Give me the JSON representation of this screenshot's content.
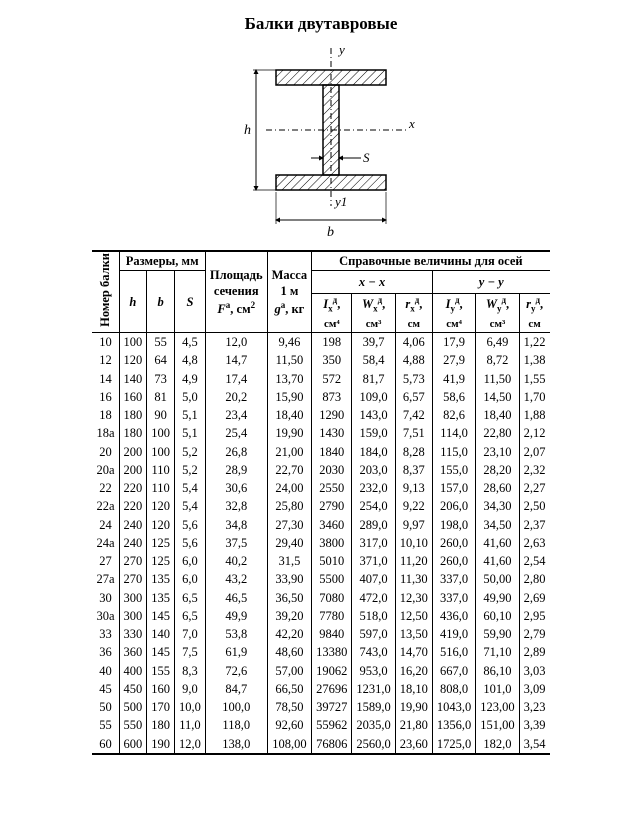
{
  "title": "Балки двутавровые",
  "diagram": {
    "labels": {
      "h": "h",
      "b": "b",
      "s": "S",
      "x": "x",
      "y": "y",
      "y1": "y1"
    },
    "hatch_color": "#000000",
    "bg": "#ffffff",
    "line_color": "#000000"
  },
  "table": {
    "header": {
      "nomer": "Номер балки",
      "razm": "Размеры, мм",
      "h": "h",
      "b": "b",
      "s": "S",
      "area_l1": "Площадь",
      "area_l2": "сечения",
      "area_sym": "Fᵃ, см²",
      "mass_l1": "Масса",
      "mass_l2": "1 м",
      "mass_sym": "gᵃ, кг",
      "ref": "Справочные величины для осей",
      "xx": "x − x",
      "yy": "y − y",
      "Ix": "Iₓᴬ,",
      "Ix_u": "см⁴",
      "Wx": "Wₓᴬ,",
      "Wx_u": "см³",
      "rx": "rₓᴬ,",
      "rx_u": "см",
      "Iy": "Iᵧᴬ,",
      "Iy_u": "см⁴",
      "Wy": "Wᵧᴬ,",
      "Wy_u": "см³",
      "ry": "rᵧᴬ,",
      "ry_u": "см"
    },
    "rows": [
      [
        "10",
        "100",
        "55",
        "4,5",
        "12,0",
        "9,46",
        "198",
        "39,7",
        "4,06",
        "17,9",
        "6,49",
        "1,22"
      ],
      [
        "12",
        "120",
        "64",
        "4,8",
        "14,7",
        "11,50",
        "350",
        "58,4",
        "4,88",
        "27,9",
        "8,72",
        "1,38"
      ],
      [
        "14",
        "140",
        "73",
        "4,9",
        "17,4",
        "13,70",
        "572",
        "81,7",
        "5,73",
        "41,9",
        "11,50",
        "1,55"
      ],
      [
        "16",
        "160",
        "81",
        "5,0",
        "20,2",
        "15,90",
        "873",
        "109,0",
        "6,57",
        "58,6",
        "14,50",
        "1,70"
      ],
      [
        "18",
        "180",
        "90",
        "5,1",
        "23,4",
        "18,40",
        "1290",
        "143,0",
        "7,42",
        "82,6",
        "18,40",
        "1,88"
      ],
      [
        "18a",
        "180",
        "100",
        "5,1",
        "25,4",
        "19,90",
        "1430",
        "159,0",
        "7,51",
        "114,0",
        "22,80",
        "2,12"
      ],
      [
        "20",
        "200",
        "100",
        "5,2",
        "26,8",
        "21,00",
        "1840",
        "184,0",
        "8,28",
        "115,0",
        "23,10",
        "2,07"
      ],
      [
        "20a",
        "200",
        "110",
        "5,2",
        "28,9",
        "22,70",
        "2030",
        "203,0",
        "8,37",
        "155,0",
        "28,20",
        "2,32"
      ],
      [
        "22",
        "220",
        "110",
        "5,4",
        "30,6",
        "24,00",
        "2550",
        "232,0",
        "9,13",
        "157,0",
        "28,60",
        "2,27"
      ],
      [
        "22a",
        "220",
        "120",
        "5,4",
        "32,8",
        "25,80",
        "2790",
        "254,0",
        "9,22",
        "206,0",
        "34,30",
        "2,50"
      ],
      [
        "24",
        "240",
        "120",
        "5,6",
        "34,8",
        "27,30",
        "3460",
        "289,0",
        "9,97",
        "198,0",
        "34,50",
        "2,37"
      ],
      [
        "24a",
        "240",
        "125",
        "5,6",
        "37,5",
        "29,40",
        "3800",
        "317,0",
        "10,10",
        "260,0",
        "41,60",
        "2,63"
      ],
      [
        "27",
        "270",
        "125",
        "6,0",
        "40,2",
        "31,5",
        "5010",
        "371,0",
        "11,20",
        "260,0",
        "41,60",
        "2,54"
      ],
      [
        "27a",
        "270",
        "135",
        "6,0",
        "43,2",
        "33,90",
        "5500",
        "407,0",
        "11,30",
        "337,0",
        "50,00",
        "2,80"
      ],
      [
        "30",
        "300",
        "135",
        "6,5",
        "46,5",
        "36,50",
        "7080",
        "472,0",
        "12,30",
        "337,0",
        "49,90",
        "2,69"
      ],
      [
        "30a",
        "300",
        "145",
        "6,5",
        "49,9",
        "39,20",
        "7780",
        "518,0",
        "12,50",
        "436,0",
        "60,10",
        "2,95"
      ],
      [
        "33",
        "330",
        "140",
        "7,0",
        "53,8",
        "42,20",
        "9840",
        "597,0",
        "13,50",
        "419,0",
        "59,90",
        "2,79"
      ],
      [
        "36",
        "360",
        "145",
        "7,5",
        "61,9",
        "48,60",
        "13380",
        "743,0",
        "14,70",
        "516,0",
        "71,10",
        "2,89"
      ],
      [
        "40",
        "400",
        "155",
        "8,3",
        "72,6",
        "57,00",
        "19062",
        "953,0",
        "16,20",
        "667,0",
        "86,10",
        "3,03"
      ],
      [
        "45",
        "450",
        "160",
        "9,0",
        "84,7",
        "66,50",
        "27696",
        "1231,0",
        "18,10",
        "808,0",
        "101,0",
        "3,09"
      ],
      [
        "50",
        "500",
        "170",
        "10,0",
        "100,0",
        "78,50",
        "39727",
        "1589,0",
        "19,90",
        "1043,0",
        "123,00",
        "3,23"
      ],
      [
        "55",
        "550",
        "180",
        "11,0",
        "118,0",
        "92,60",
        "55962",
        "2035,0",
        "21,80",
        "1356,0",
        "151,00",
        "3,39"
      ],
      [
        "60",
        "600",
        "190",
        "12,0",
        "138,0",
        "108,00",
        "76806",
        "2560,0",
        "23,60",
        "1725,0",
        "182,0",
        "3,54"
      ]
    ]
  }
}
